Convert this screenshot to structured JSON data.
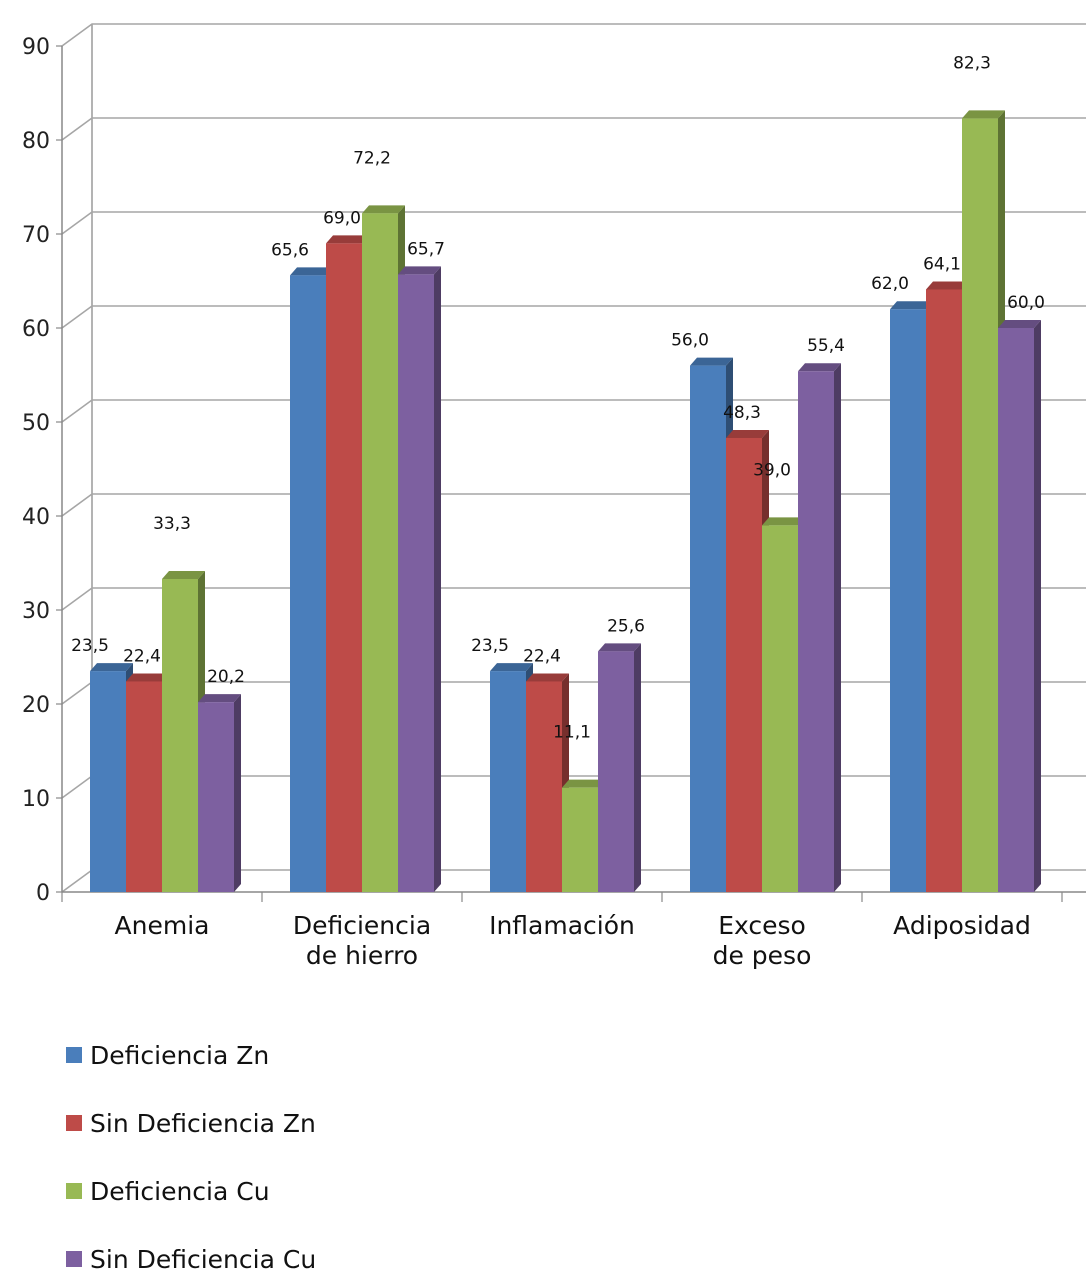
{
  "chart_data": {
    "type": "bar",
    "title": "",
    "xlabel": "",
    "ylabel": "",
    "ylim": [
      0,
      90
    ],
    "yticks": [
      "0",
      "10",
      "20",
      "30",
      "40",
      "50",
      "60",
      "70",
      "80",
      "90"
    ],
    "grid": true,
    "style": "3d-clustered-column",
    "legend_position": "bottom-left",
    "categories": [
      [
        "Anemia"
      ],
      [
        "Deficiencia",
        "de hierro"
      ],
      [
        "Inflamación"
      ],
      [
        "Exceso",
        "de peso"
      ],
      [
        "Adiposidad"
      ]
    ],
    "series": [
      {
        "name": "Deficiencia Zn",
        "color": "#4a7ebb",
        "values": [
          23.5,
          65.6,
          23.5,
          56.0,
          62.0
        ],
        "labels": [
          "23,5",
          "65,6",
          "23,5",
          "56,0",
          "62,0"
        ]
      },
      {
        "name": "Sin Deficiencia Zn",
        "color": "#be4b48",
        "values": [
          22.4,
          69.0,
          22.4,
          48.3,
          64.1
        ],
        "labels": [
          "22,4",
          "69,0",
          "22,4",
          "48,3",
          "64,1"
        ]
      },
      {
        "name": "Deficiencia Cu",
        "color": "#98b954",
        "values": [
          33.3,
          72.2,
          11.1,
          39.0,
          82.3
        ],
        "labels": [
          "33,3",
          "72,2",
          "11,1",
          "39,0",
          "82,3"
        ]
      },
      {
        "name": "Sin Deficiencia Cu",
        "color": "#7d60a0",
        "values": [
          20.2,
          65.7,
          25.6,
          55.4,
          60.0
        ],
        "labels": [
          "20,2",
          "65,7",
          "25,6",
          "55,4",
          "60,0"
        ]
      }
    ]
  }
}
